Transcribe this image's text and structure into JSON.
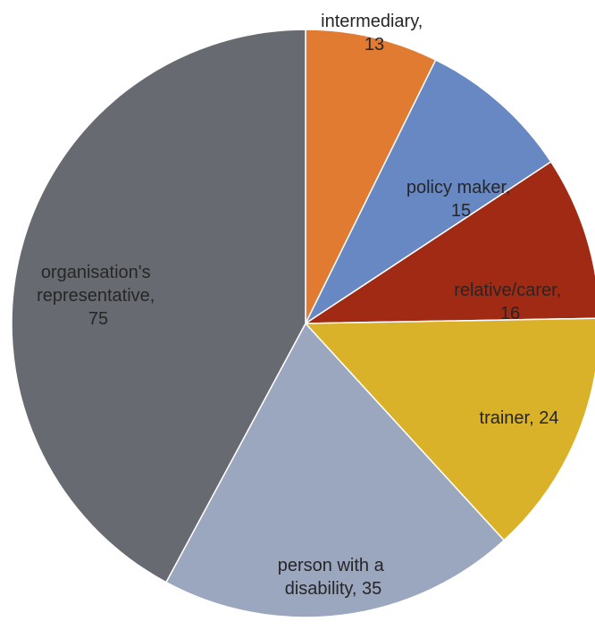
{
  "chart_data": {
    "type": "pie",
    "title": "",
    "slices": [
      {
        "label": "intermediary",
        "value": 13,
        "color": "#E07B31"
      },
      {
        "label": "policy maker",
        "value": 15,
        "color": "#6788C2"
      },
      {
        "label": "relative/carer",
        "value": 16,
        "color": "#A12A14"
      },
      {
        "label": "trainer",
        "value": 24,
        "color": "#D9B22A"
      },
      {
        "label": "person with a disability",
        "value": 35,
        "color": "#9BA6BF"
      },
      {
        "label": "organisation's representative",
        "value": 75,
        "color": "#676B71"
      }
    ],
    "data_labels": [
      {
        "lines": [
          "intermediary,",
          "13"
        ]
      },
      {
        "lines": [
          "policy maker,",
          "15"
        ]
      },
      {
        "lines": [
          "relative/carer,",
          "16"
        ]
      },
      {
        "lines": [
          "trainer, 24"
        ]
      },
      {
        "lines": [
          "person with a",
          "disability, 35"
        ]
      },
      {
        "lines": [
          "organisation's",
          "representative,",
          "75"
        ]
      }
    ]
  }
}
